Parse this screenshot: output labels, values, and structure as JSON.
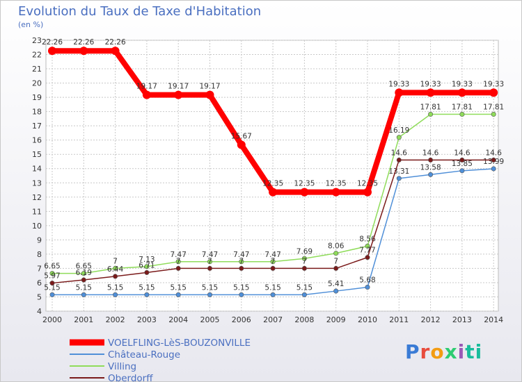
{
  "title": "Evolution du Taux de Taxe d'Habitation",
  "subtitle": "(en %)",
  "logo": [
    "P",
    "r",
    "o",
    "x",
    "i",
    "ti"
  ],
  "chart_data": {
    "type": "line",
    "title": "Evolution du Taux de Taxe d'Habitation",
    "ylabel": "(en %)",
    "xlabel": "",
    "ylim": [
      4,
      23
    ],
    "yticks": [
      "4",
      "5",
      "6",
      "7",
      "8",
      "9",
      "10",
      "11",
      "12",
      "13",
      "14",
      "15",
      "16",
      "17",
      "18",
      "19",
      "20",
      "21",
      "22",
      "23"
    ],
    "categories": [
      "2000",
      "2001",
      "2002",
      "2003",
      "2004",
      "2005",
      "2006",
      "2007",
      "2008",
      "2009",
      "2010",
      "2011",
      "2012",
      "2013",
      "2014"
    ],
    "grid": true,
    "legend_position": "bottom-left",
    "series": [
      {
        "name": "VOELFLING-LèS-BOUZONVILLE",
        "color": "#ff0000",
        "values": [
          22.26,
          22.26,
          22.26,
          19.17,
          19.17,
          19.17,
          15.67,
          12.35,
          12.35,
          12.35,
          12.35,
          19.33,
          19.33,
          19.33,
          19.33
        ],
        "labels": [
          "22.26",
          "22.26",
          "22.26",
          "19.17",
          "19.17",
          "19.17",
          "15.67",
          "12.35",
          "12.35",
          "12.35",
          "12.35",
          "19.33",
          "19.33",
          "19.33",
          "19.33"
        ]
      },
      {
        "name": "Château-Rouge",
        "color": "#4f8fd8",
        "values": [
          5.15,
          5.15,
          5.15,
          5.15,
          5.15,
          5.15,
          5.15,
          5.15,
          5.15,
          5.41,
          5.68,
          13.31,
          13.58,
          13.85,
          13.99
        ],
        "labels": [
          "5.15",
          "5.15",
          "5.15",
          "5.15",
          "5.15",
          "5.15",
          "5.15",
          "5.15",
          "5.15",
          "5.41",
          "5.68",
          "13.31",
          "13.58",
          "13.85",
          "13.99"
        ]
      },
      {
        "name": "Villing",
        "color": "#8fdc5a",
        "values": [
          6.65,
          6.65,
          7,
          7.13,
          7.47,
          7.47,
          7.47,
          7.47,
          7.69,
          8.06,
          8.56,
          16.19,
          17.81,
          17.81,
          17.81
        ],
        "labels": [
          "6.65",
          "6.65",
          "7",
          "7.13",
          "7.47",
          "7.47",
          "7.47",
          "7.47",
          "7.69",
          "8.06",
          "8.56",
          "16.19",
          "17.81",
          "17.81",
          "17.81"
        ]
      },
      {
        "name": "Oberdorff",
        "color": "#7a1a1a",
        "values": [
          5.97,
          6.19,
          6.44,
          6.71,
          7,
          7,
          7,
          7,
          7,
          7,
          7.77,
          14.6,
          14.6,
          14.6,
          14.6
        ],
        "labels": [
          "5.97",
          "6.19",
          "6.44",
          "6.71",
          "7",
          "7",
          "7",
          "7",
          "7",
          "7",
          "7.77",
          "14.6",
          "14.6",
          "14.6",
          "14.6"
        ]
      }
    ]
  }
}
